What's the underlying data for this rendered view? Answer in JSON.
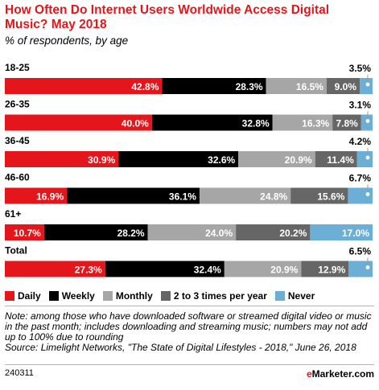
{
  "title": "How Often Do Internet Users Worldwide Access Digital Music? May 2018",
  "subtitle": "% of respondents, by age",
  "chart_data": {
    "type": "bar",
    "orientation": "horizontal",
    "stacked": true,
    "title": "How Often Do Internet Users Worldwide Access Digital Music? May 2018",
    "subtitle": "% of respondents, by age",
    "categories": [
      "18-25",
      "26-35",
      "36-45",
      "46-60",
      "61+",
      "Total"
    ],
    "series": [
      {
        "name": "Daily",
        "color": "#e5161b",
        "values": [
          42.8,
          40.0,
          30.9,
          16.9,
          10.7,
          27.3
        ],
        "labels": [
          "42.8%",
          "40.0%",
          "30.9%",
          "16.9%",
          "10.7%",
          "27.3%"
        ]
      },
      {
        "name": "Weekly",
        "color": "#000000",
        "values": [
          28.3,
          32.8,
          32.6,
          36.1,
          28.2,
          32.4
        ],
        "labels": [
          "28.3%",
          "32.8%",
          "32.6%",
          "36.1%",
          "28.2%",
          "32.4%"
        ]
      },
      {
        "name": "Monthly",
        "color": "#a6a6a6",
        "values": [
          16.5,
          16.3,
          20.9,
          24.8,
          24.0,
          20.9
        ],
        "labels": [
          "16.5%",
          "16.3%",
          "20.9%",
          "24.8%",
          "24.0%",
          "20.9%"
        ]
      },
      {
        "name": "2 to 3 times per year",
        "color": "#666666",
        "values": [
          9.0,
          7.8,
          11.4,
          15.6,
          20.2,
          12.9
        ],
        "labels": [
          "9.0%",
          "7.8%",
          "11.4%",
          "15.6%",
          "20.2%",
          "12.9%"
        ]
      },
      {
        "name": "Never",
        "color": "#6baed6",
        "values": [
          3.5,
          3.1,
          4.2,
          6.7,
          17.0,
          6.5
        ],
        "labels": [
          "3.5%",
          "3.1%",
          "4.2%",
          "6.7%",
          "17.0%",
          "6.5%"
        ]
      }
    ],
    "legend_position": "bottom",
    "grid": false
  },
  "note": "Note: among those who have downloaded software or streamed digital video or music in the past month; includes downloading and streaming music; numbers may not add up to 100% due to rounding",
  "source": "Source: Limelight Networks, \"The State of Digital Lifestyles - 2018,\" June 26, 2018",
  "footer": {
    "id": "240311",
    "brand_e": "e",
    "brand_rest": "Marketer.com"
  }
}
